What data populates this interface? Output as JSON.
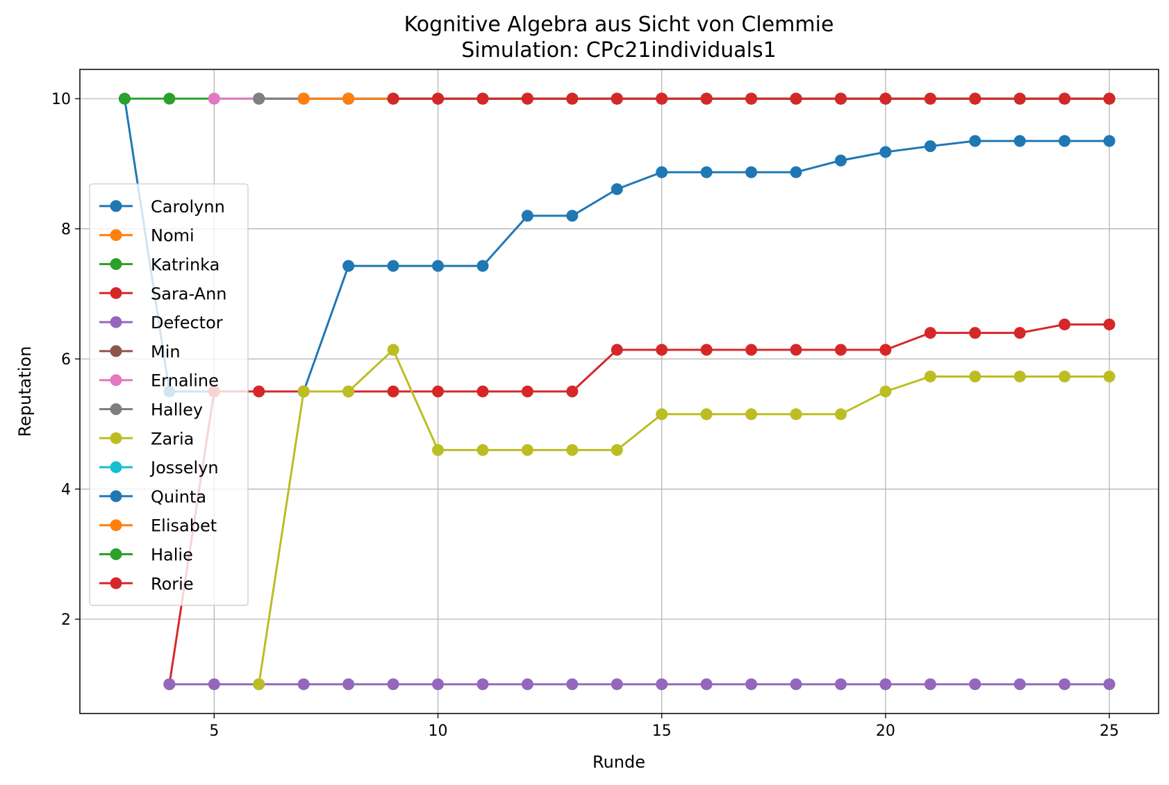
{
  "chart_data": {
    "type": "line",
    "title": "Kognitive Algebra aus Sicht von Clemmie",
    "subtitle": "Simulation: CPc21individuals1",
    "xlabel": "Runde",
    "ylabel": "Reputation",
    "xlim": [
      2,
      26.1
    ],
    "ylim": [
      0.55,
      10.45
    ],
    "xticks": [
      5,
      10,
      15,
      20,
      25
    ],
    "yticks": [
      2,
      4,
      6,
      8,
      10
    ],
    "grid": true,
    "legend_position": "center-left",
    "series": [
      {
        "name": "Carolynn",
        "color": "#1f77b4",
        "x": [
          3,
          4,
          5,
          6,
          7,
          8,
          9,
          10,
          11,
          12,
          13,
          14,
          15,
          16,
          17,
          18,
          19,
          20,
          21,
          22,
          23,
          24,
          25
        ],
        "y": [
          10,
          5.5,
          5.5,
          5.5,
          5.5,
          7.43,
          7.43,
          7.43,
          7.43,
          8.2,
          8.2,
          8.61,
          8.87,
          8.87,
          8.87,
          8.87,
          9.05,
          9.18,
          9.27,
          9.35,
          9.35,
          9.35,
          9.35
        ]
      },
      {
        "name": "Nomi",
        "color": "#ff7f0e",
        "x": [
          7,
          8,
          9,
          10,
          11,
          12,
          13,
          14,
          15,
          16,
          17,
          18,
          19,
          20,
          21,
          22,
          23,
          24,
          25
        ],
        "y": [
          10,
          10,
          10,
          10,
          10,
          10,
          10,
          10,
          10,
          10,
          10,
          10,
          10,
          10,
          10,
          10,
          10,
          10,
          10
        ]
      },
      {
        "name": "Katrinka",
        "color": "#2ca02c",
        "x": [
          3,
          4,
          5,
          6,
          7,
          8,
          9,
          10,
          11,
          12,
          13,
          14,
          15,
          16,
          17,
          18,
          19,
          20,
          21,
          22,
          23,
          24,
          25
        ],
        "y": [
          10,
          10,
          10,
          10,
          10,
          10,
          10,
          10,
          10,
          10,
          10,
          10,
          10,
          10,
          10,
          10,
          10,
          10,
          10,
          10,
          10,
          10,
          10
        ]
      },
      {
        "name": "Sara-Ann",
        "color": "#d62728",
        "x": [
          4,
          5,
          6,
          7,
          8,
          9,
          10,
          11,
          12,
          13,
          14,
          15,
          16,
          17,
          18,
          19,
          20,
          21,
          22,
          23,
          24,
          25
        ],
        "y": [
          1,
          5.5,
          5.5,
          5.5,
          5.5,
          5.5,
          5.5,
          5.5,
          5.5,
          5.5,
          6.14,
          6.14,
          6.14,
          6.14,
          6.14,
          6.14,
          6.14,
          6.4,
          6.4,
          6.4,
          6.53,
          6.53
        ]
      },
      {
        "name": "Defector",
        "color": "#9467bd",
        "x": [
          4,
          5,
          6,
          7,
          8,
          9,
          10,
          11,
          12,
          13,
          14,
          15,
          16,
          17,
          18,
          19,
          20,
          21,
          22,
          23,
          24,
          25
        ],
        "y": [
          1,
          1,
          1,
          1,
          1,
          1,
          1,
          1,
          1,
          1,
          1,
          1,
          1,
          1,
          1,
          1,
          1,
          1,
          1,
          1,
          1,
          1
        ]
      },
      {
        "name": "Min",
        "color": "#8c564b",
        "x": [
          6,
          7,
          8,
          9,
          10,
          11,
          12,
          13,
          14,
          15,
          16,
          17,
          18,
          19,
          20,
          21,
          22,
          23,
          24,
          25
        ],
        "y": [
          10,
          10,
          10,
          10,
          10,
          10,
          10,
          10,
          10,
          10,
          10,
          10,
          10,
          10,
          10,
          10,
          10,
          10,
          10,
          10
        ]
      },
      {
        "name": "Ernaline",
        "color": "#e377c2",
        "x": [
          5,
          6,
          7,
          8,
          9,
          10,
          11,
          12,
          13,
          14,
          15,
          16,
          17,
          18,
          19,
          20,
          21,
          22,
          23,
          24,
          25
        ],
        "y": [
          10,
          10,
          10,
          10,
          10,
          10,
          10,
          10,
          10,
          10,
          10,
          10,
          10,
          10,
          10,
          10,
          10,
          10,
          10,
          10,
          10
        ]
      },
      {
        "name": "Halley",
        "color": "#7f7f7f",
        "x": [
          6,
          7,
          8,
          9,
          10,
          11,
          12,
          13,
          14,
          15,
          16,
          17,
          18,
          19,
          20,
          21,
          22,
          23,
          24,
          25
        ],
        "y": [
          10,
          10,
          10,
          10,
          10,
          10,
          10,
          10,
          10,
          10,
          10,
          10,
          10,
          10,
          10,
          10,
          10,
          10,
          10,
          10
        ]
      },
      {
        "name": "Zaria",
        "color": "#bcbd22",
        "x": [
          6,
          7,
          8,
          9,
          10,
          11,
          12,
          13,
          14,
          15,
          16,
          17,
          18,
          19,
          20,
          21,
          22,
          23,
          24,
          25
        ],
        "y": [
          1,
          5.5,
          5.5,
          6.14,
          4.6,
          4.6,
          4.6,
          4.6,
          4.6,
          5.15,
          5.15,
          5.15,
          5.15,
          5.15,
          5.5,
          5.73,
          5.73,
          5.73,
          5.73,
          5.73
        ]
      },
      {
        "name": "Josselyn",
        "color": "#17becf",
        "x": [
          8,
          9,
          10,
          11,
          12,
          13,
          14,
          15,
          16,
          17,
          18,
          19,
          20,
          21,
          22,
          23,
          24,
          25
        ],
        "y": [
          10,
          10,
          10,
          10,
          10,
          10,
          10,
          10,
          10,
          10,
          10,
          10,
          10,
          10,
          10,
          10,
          10,
          10
        ]
      },
      {
        "name": "Quinta",
        "color": "#1f77b4",
        "x": [
          8,
          9,
          10,
          11,
          12,
          13,
          14,
          15,
          16,
          17,
          18,
          19,
          20,
          21,
          22,
          23,
          24,
          25
        ],
        "y": [
          10,
          10,
          10,
          10,
          10,
          10,
          10,
          10,
          10,
          10,
          10,
          10,
          10,
          10,
          10,
          10,
          10,
          10
        ]
      },
      {
        "name": "Elisabet",
        "color": "#ff7f0e",
        "x": [
          7,
          8,
          9,
          10,
          11,
          12,
          13,
          14,
          15,
          16,
          17,
          18,
          19,
          20,
          21,
          22,
          23,
          24,
          25
        ],
        "y": [
          10,
          10,
          10,
          10,
          10,
          10,
          10,
          10,
          10,
          10,
          10,
          10,
          10,
          10,
          10,
          10,
          10,
          10,
          10
        ]
      },
      {
        "name": "Halie",
        "color": "#2ca02c",
        "x": [
          9,
          10,
          11,
          12,
          13,
          14,
          15,
          16,
          17,
          18,
          19,
          20,
          21,
          22,
          23,
          24,
          25
        ],
        "y": [
          10,
          10,
          10,
          10,
          10,
          10,
          10,
          10,
          10,
          10,
          10,
          10,
          10,
          10,
          10,
          10,
          10
        ]
      },
      {
        "name": "Rorie",
        "color": "#d62728",
        "x": [
          9,
          10,
          11,
          12,
          13,
          14,
          15,
          16,
          17,
          18,
          19,
          20,
          21,
          22,
          23,
          24,
          25
        ],
        "y": [
          10,
          10,
          10,
          10,
          10,
          10,
          10,
          10,
          10,
          10,
          10,
          10,
          10,
          10,
          10,
          10,
          10
        ]
      }
    ]
  }
}
